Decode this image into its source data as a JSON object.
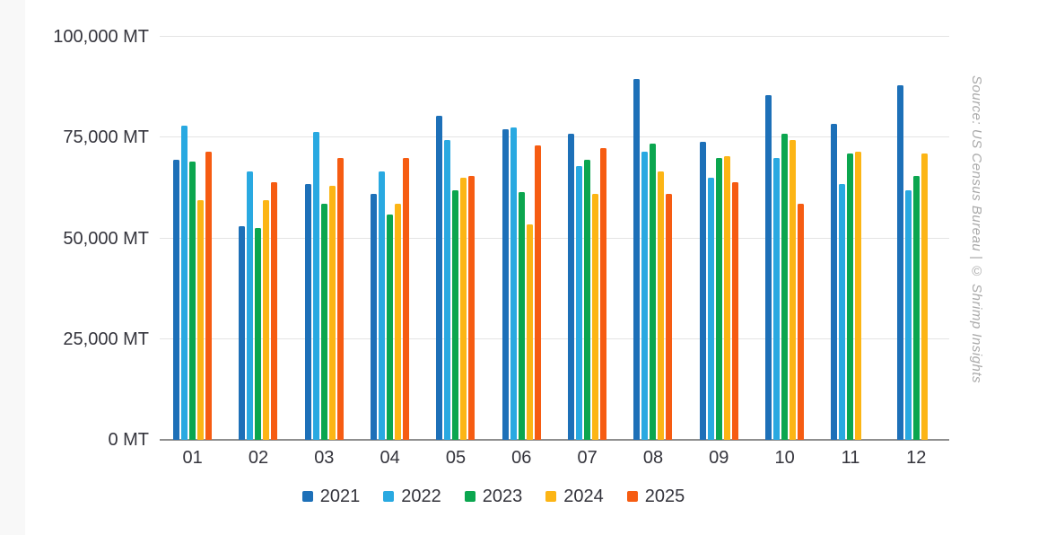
{
  "chart_data": {
    "type": "bar",
    "title": "",
    "xlabel": "",
    "ylabel": "",
    "unit": "MT",
    "ylim": [
      0,
      100000
    ],
    "yticks": [
      {
        "value": 0,
        "label": "0 MT"
      },
      {
        "value": 25000,
        "label": "25,000 MT"
      },
      {
        "value": 50000,
        "label": "50,000 MT"
      },
      {
        "value": 75000,
        "label": "75,000 MT"
      },
      {
        "value": 100000,
        "label": "100,000 MT"
      }
    ],
    "grid": true,
    "legend_position": "bottom",
    "categories": [
      "01",
      "02",
      "03",
      "04",
      "05",
      "06",
      "07",
      "08",
      "09",
      "10",
      "11",
      "12"
    ],
    "series": [
      {
        "name": "2021",
        "color": "#1d70b8",
        "values": [
          69500,
          53000,
          63500,
          61000,
          80500,
          77000,
          76000,
          89500,
          74000,
          85500,
          78500,
          88000
        ]
      },
      {
        "name": "2022",
        "color": "#29a9e1",
        "values": [
          78000,
          66500,
          76500,
          66500,
          74500,
          77500,
          68000,
          71500,
          65000,
          70000,
          63500,
          62000
        ]
      },
      {
        "name": "2023",
        "color": "#0ba64f",
        "values": [
          69000,
          52500,
          58500,
          56000,
          62000,
          61500,
          69500,
          73500,
          70000,
          76000,
          71000,
          65500
        ]
      },
      {
        "name": "2024",
        "color": "#fcb515",
        "values": [
          59500,
          59500,
          63000,
          58500,
          65000,
          53500,
          61000,
          66500,
          70500,
          74500,
          71500,
          71000
        ]
      },
      {
        "name": "2025",
        "color": "#f65c12",
        "values": [
          71500,
          64000,
          70000,
          70000,
          65500,
          73000,
          72500,
          61000,
          64000,
          58500,
          null,
          null
        ]
      }
    ],
    "source_note": "Source: US Census Bureau | © Shrimp Insights"
  }
}
